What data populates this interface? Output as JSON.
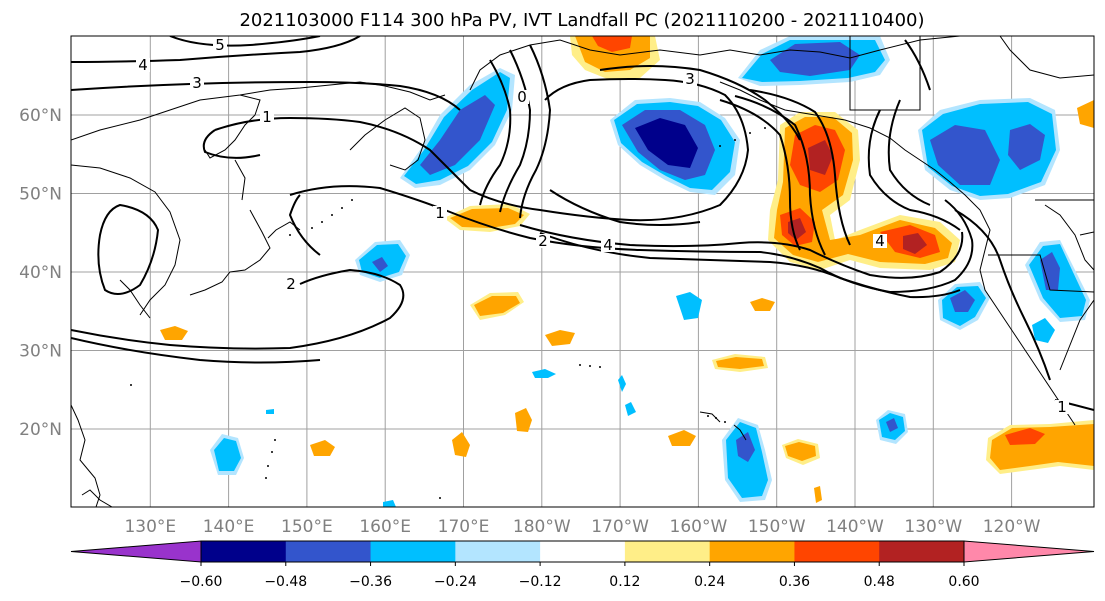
{
  "title": "2021103000 F114 300 hPa PV, IVT Landfall PC (2021110200 - 2021110400)",
  "map": {
    "lon_ticks": [
      "130°E",
      "140°E",
      "150°E",
      "160°E",
      "170°E",
      "180°W",
      "170°W",
      "160°W",
      "150°W",
      "140°W",
      "130°W",
      "120°W"
    ],
    "lat_ticks": [
      "60°N",
      "50°N",
      "40°N",
      "30°N",
      "20°N"
    ],
    "gridlines": true,
    "contour_labels": [
      "5",
      "4",
      "3",
      "1",
      "1",
      "2",
      "4",
      "4",
      "2",
      "1",
      "0",
      "3"
    ]
  },
  "colorbar": {
    "levels": [
      "−0.60",
      "−0.48",
      "−0.36",
      "−0.24",
      "−0.12",
      "0.12",
      "0.24",
      "0.36",
      "0.48",
      "0.60"
    ],
    "colors": {
      "under": "#9933cc",
      "bins": [
        "#00008b",
        "#3355cc",
        "#00bfff",
        "#b3e5ff",
        "#ffffff",
        "#ffee88",
        "#ffa500",
        "#ff4500",
        "#b22222"
      ],
      "over": "#ff88aa"
    },
    "extend": "both"
  }
}
